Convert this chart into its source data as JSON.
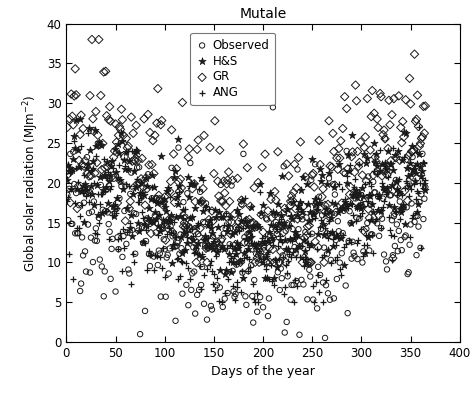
{
  "title": "Mutale",
  "xlabel": "Days of the year",
  "ylabel": "Global solar radiation (MJm$^{-2}$)",
  "xlim": [
    0,
    400
  ],
  "ylim": [
    0,
    40
  ],
  "xticks": [
    0,
    50,
    100,
    150,
    200,
    250,
    300,
    350,
    400
  ],
  "yticks": [
    0,
    5,
    10,
    15,
    20,
    25,
    30,
    35,
    40
  ],
  "legend_labels": [
    "Observed",
    "H&S",
    "GR",
    "ANG"
  ],
  "seed": 42,
  "n_points": 365,
  "background_color": "#ffffff",
  "marker_color": "#1a1a1a",
  "figsize": [
    4.74,
    3.93
  ],
  "dpi": 100
}
